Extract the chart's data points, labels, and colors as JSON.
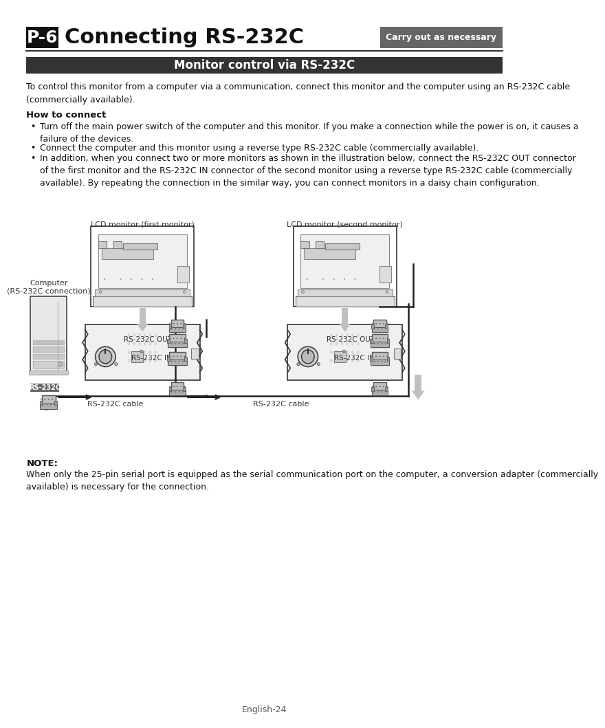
{
  "page_bg": "#ffffff",
  "title_box_color": "#111111",
  "title_text": "P-6",
  "title_main": "Connecting RS-232C",
  "badge_color": "#666666",
  "badge_text": "Carry out as necessary",
  "section_bar_color": "#333333",
  "section_text": "Monitor control via RS-232C",
  "body_text1": "To control this monitor from a computer via a communication, connect this monitor and the computer using an RS-232C cable\n(commercially available).",
  "how_to_connect": "How to connect",
  "bullet1": "Turn off the main power switch of the computer and this monitor. If you make a connection while the power is on, it causes a\nfailure of the devices.",
  "bullet2": "Connect the computer and this monitor using a reverse type RS-232C cable (commercially available).",
  "bullet3": "In addition, when you connect two or more monitors as shown in the illustration below, connect the RS-232C OUT connector\nof the first monitor and the RS-232C IN connector of the second monitor using a reverse type RS-232C cable (commercially\navailable). By repeating the connection in the similar way, you can connect monitors in a daisy chain configuration.",
  "label_monitor1": "LCD monitor (first monitor)",
  "label_monitor2": "LCD monitor (second monitor)",
  "label_computer": "Computer\n(RS-232C connection)",
  "label_rs232c_out1": "RS-232C OUT",
  "label_rs232c_in1": "RS-232C IN",
  "label_rs232c_out2": "RS-232C OUT",
  "label_rs232c_in2": "RS-232C IN",
  "label_rs232c_badge": "RS-232C",
  "label_cable1": "RS-232C cable",
  "label_cable2": "RS-232C cable",
  "note_title": "NOTE:",
  "note_text": "When only the 25-pin serial port is equipped as the serial communication port on the computer, a conversion adapter (commercially\navailable) is necessary for the connection.",
  "footer_text": "English-24",
  "line_color": "#333333",
  "panel_color": "#f5f5f5",
  "connector_color": "#b8b8b8",
  "arrow_color": "#aaaaaa"
}
